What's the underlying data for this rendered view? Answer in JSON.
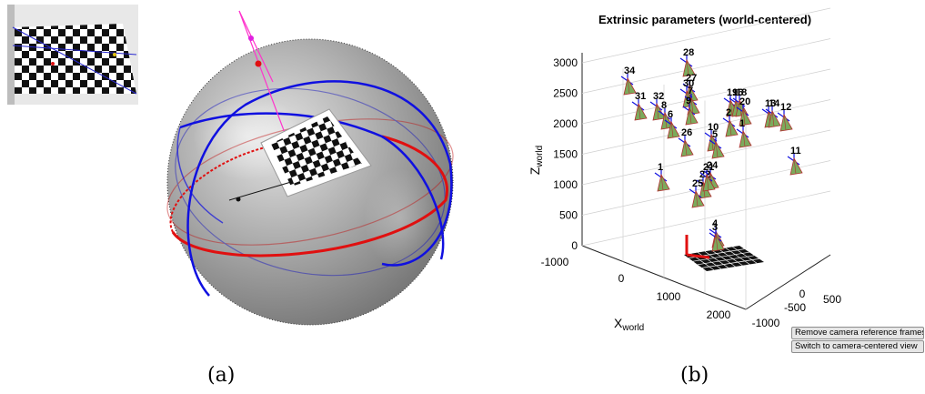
{
  "captions": {
    "a": "(a)",
    "b": "(b)"
  },
  "buttons": {
    "remove_frames": "Remove camera reference frames",
    "switch_view": "Switch to camera-centered view"
  },
  "colors": {
    "sphere": "#9a9a9a",
    "circle_blue": "#1010e0",
    "circle_red": "#e01010",
    "ray": "#ff33cc",
    "camera_fill": "#7caa5c",
    "camera_edge": "#b03030"
  },
  "chart_data": {
    "type": "scatter",
    "title": "Extrinsic parameters (world-centered)",
    "zlabel": "Z",
    "zlabel_sub": "world",
    "xlabel": "X",
    "xlabel_sub": "world",
    "z_ticks": [
      "0",
      "500",
      "1000",
      "1500",
      "2000",
      "2500",
      "3000"
    ],
    "x_ticks": [
      "-1000",
      "0",
      "1000",
      "2000"
    ],
    "y_ticks": [
      "-1000",
      "-500",
      "0",
      "500"
    ],
    "camera_labels": [
      "28",
      "34",
      "27",
      "30",
      "7",
      "31",
      "32",
      "8",
      "9",
      "6",
      "19",
      "16",
      "18",
      "20",
      "13",
      "14",
      "12",
      "2",
      "1",
      "10",
      "5",
      "26",
      "11",
      "1",
      "24",
      "22",
      "21",
      "25",
      "4",
      "3"
    ]
  }
}
